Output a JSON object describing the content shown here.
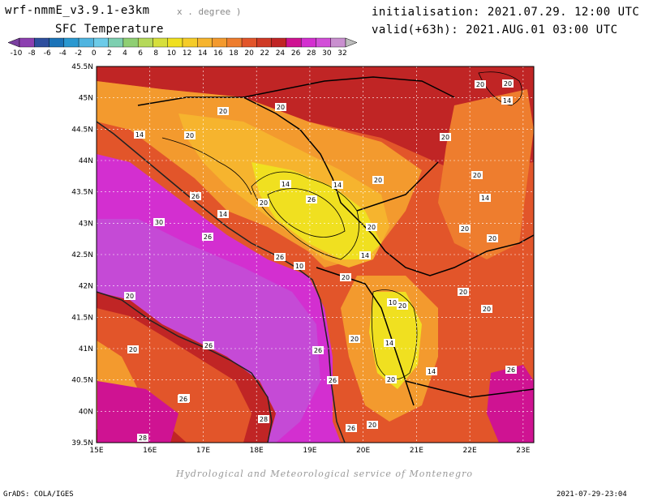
{
  "header": {
    "model": "wrf-nmmE_v3.9.1-e3km",
    "projection": "x . degree )",
    "variable": "SFC Temperature",
    "initialisation": "initialisation: 2021.07.29. 12:00 UTC",
    "valid": "valid(+63h): 2021.AUG.01 03:00 UTC"
  },
  "colorbar": {
    "labels": [
      "-10",
      "-8",
      "-6",
      "-4",
      "-2",
      "0",
      "2",
      "4",
      "6",
      "8",
      "10",
      "12",
      "14",
      "16",
      "18",
      "20",
      "22",
      "24",
      "26",
      "28",
      "30",
      "32"
    ],
    "colors": [
      "#8c3fb0",
      "#2e4f9e",
      "#1b73b8",
      "#2a98d0",
      "#4fb4e0",
      "#6ccbe8",
      "#7dcfb0",
      "#8fcf73",
      "#b5d95a",
      "#d6df3c",
      "#f0e020",
      "#f5cc28",
      "#f6b42e",
      "#f39a2e",
      "#ee7d2e",
      "#e2552a",
      "#cf3a25",
      "#c02525",
      "#cf1392",
      "#d32fd0",
      "#d24ed8",
      "#c98fcf"
    ]
  },
  "map": {
    "lat_labels": [
      "45.5N",
      "45N",
      "44.5N",
      "44N",
      "43.5N",
      "43N",
      "42.5N",
      "42N",
      "41.5N",
      "41N",
      "40.5N",
      "40N",
      "39.5N"
    ],
    "lon_labels": [
      "15E",
      "16E",
      "17E",
      "18E",
      "19E",
      "20E",
      "21E",
      "22E",
      "23E"
    ],
    "contour_labels": [
      "20",
      "20",
      "20",
      "20",
      "14",
      "14",
      "20",
      "20",
      "20",
      "14",
      "14",
      "20",
      "26",
      "20",
      "26",
      "30",
      "14",
      "20",
      "26",
      "20",
      "20",
      "14",
      "10",
      "20",
      "10",
      "20",
      "26",
      "20",
      "26",
      "26",
      "26",
      "20",
      "20",
      "20",
      "26",
      "14",
      "14",
      "20",
      "28",
      "20",
      "20",
      "28",
      "26",
      "20",
      "14",
      "26"
    ]
  },
  "footer": {
    "credit": "Hydrological and Meteorological service of Montenegro",
    "software": "GrADS: COLA/IGES",
    "timestamp": "2021-07-29-23:04"
  }
}
